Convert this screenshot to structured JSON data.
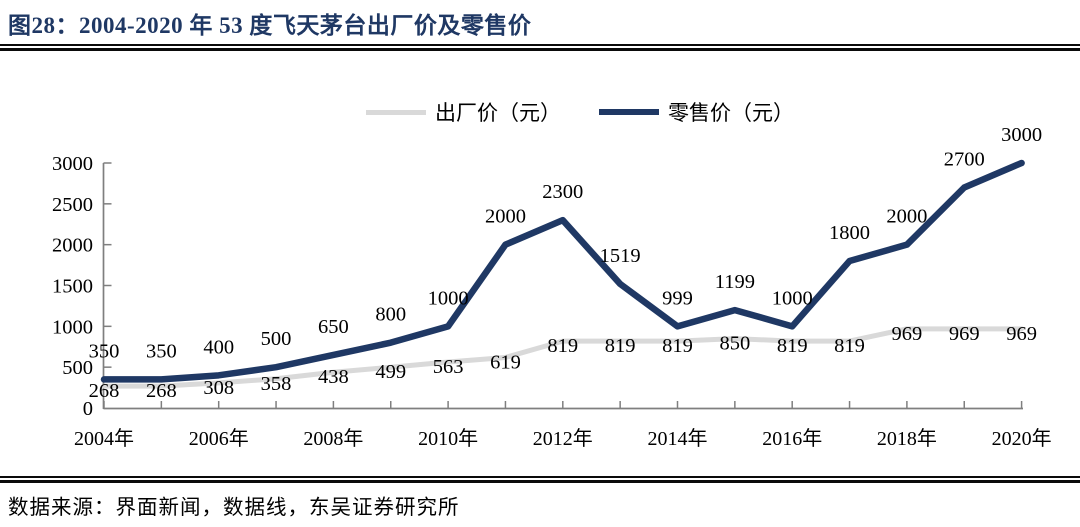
{
  "figure": {
    "title": "图28：2004-2020 年 53 度飞天茅台出厂价及零售价",
    "source": "数据来源：界面新闻，数据线，东吴证券研究所"
  },
  "legend": [
    {
      "label": "出厂价（元）",
      "color": "#D9D9D9"
    },
    {
      "label": "零售价（元）",
      "color": "#1F3864"
    }
  ],
  "colors": {
    "title": "#1F3864",
    "factory_line": "#D9D9D9",
    "retail_line": "#1F3864",
    "axis": "#7F7F7F",
    "label_text": "#000000",
    "divider": "#0a0a0a"
  },
  "chart_data": {
    "type": "line",
    "x": [
      2004,
      2005,
      2006,
      2007,
      2008,
      2009,
      2010,
      2011,
      2012,
      2013,
      2014,
      2015,
      2016,
      2017,
      2018,
      2019,
      2020
    ],
    "x_tick_labels": [
      "2004年",
      "2006年",
      "2008年",
      "2010年",
      "2012年",
      "2014年",
      "2016年",
      "2018年",
      "2020年"
    ],
    "series": [
      {
        "name": "出厂价（元）",
        "color": "#D9D9D9",
        "values": [
          268,
          268,
          308,
          358,
          438,
          499,
          563,
          619,
          819,
          819,
          819,
          850,
          819,
          819,
          969,
          969,
          969
        ]
      },
      {
        "name": "零售价（元）",
        "color": "#1F3864",
        "values": [
          350,
          350,
          400,
          500,
          650,
          800,
          1000,
          2000,
          2300,
          1519,
          999,
          1199,
          1000,
          1800,
          2000,
          2700,
          3000
        ]
      }
    ],
    "ylim": [
      0,
      3000
    ],
    "y_ticks": [
      0,
      500,
      1000,
      1500,
      2000,
      2500,
      3000
    ],
    "grid": false,
    "data_labels": true,
    "legend_position": "top-center",
    "title": "图28：2004-2020 年 53 度飞天茅台出厂价及零售价",
    "xlabel": "",
    "ylabel": ""
  }
}
